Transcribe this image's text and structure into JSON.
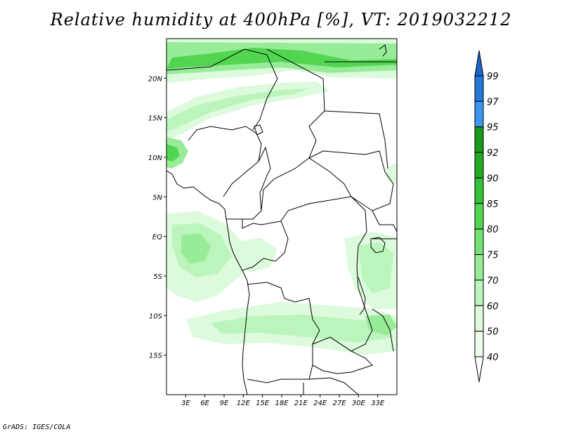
{
  "title": "Relative humidity at 400hPa [%], VT: 2019032212",
  "credit": "GrADS: IGES/COLA",
  "map": {
    "lon_range": [
      0,
      36
    ],
    "lat_range": [
      -20,
      25
    ],
    "lat_ticks": [
      {
        "label": "20N",
        "value": 20
      },
      {
        "label": "15N",
        "value": 15
      },
      {
        "label": "10N",
        "value": 10
      },
      {
        "label": "5N",
        "value": 5
      },
      {
        "label": "EQ",
        "value": 0
      },
      {
        "label": "5S",
        "value": -5
      },
      {
        "label": "10S",
        "value": -10
      },
      {
        "label": "15S",
        "value": -15
      }
    ],
    "lon_ticks": [
      {
        "label": "3E",
        "value": 3
      },
      {
        "label": "6E",
        "value": 6
      },
      {
        "label": "9E",
        "value": 9
      },
      {
        "label": "12E",
        "value": 12
      },
      {
        "label": "15E",
        "value": 15
      },
      {
        "label": "18E",
        "value": 18
      },
      {
        "label": "21E",
        "value": 21
      },
      {
        "label": "24E",
        "value": 24
      },
      {
        "label": "27E",
        "value": 27
      },
      {
        "label": "30E",
        "value": 30
      },
      {
        "label": "33E",
        "value": 33
      }
    ]
  },
  "colorbar": {
    "levels": [
      {
        "label": "99",
        "color": "#1f64c8"
      },
      {
        "label": "97",
        "color": "#2478d8"
      },
      {
        "label": "95",
        "color": "#3c96ee"
      },
      {
        "label": "92",
        "color": "#1a9a1a"
      },
      {
        "label": "90",
        "color": "#23aa23"
      },
      {
        "label": "85",
        "color": "#36c236"
      },
      {
        "label": "80",
        "color": "#52d652"
      },
      {
        "label": "75",
        "color": "#74e274"
      },
      {
        "label": "70",
        "color": "#98ec98"
      },
      {
        "label": "60",
        "color": "#bcf5bc"
      },
      {
        "label": "50",
        "color": "#dcfadc"
      },
      {
        "label": "40",
        "color": "#eefdee"
      }
    ],
    "top_color": "#1f64c8",
    "bottom_color": "#ffffff"
  }
}
